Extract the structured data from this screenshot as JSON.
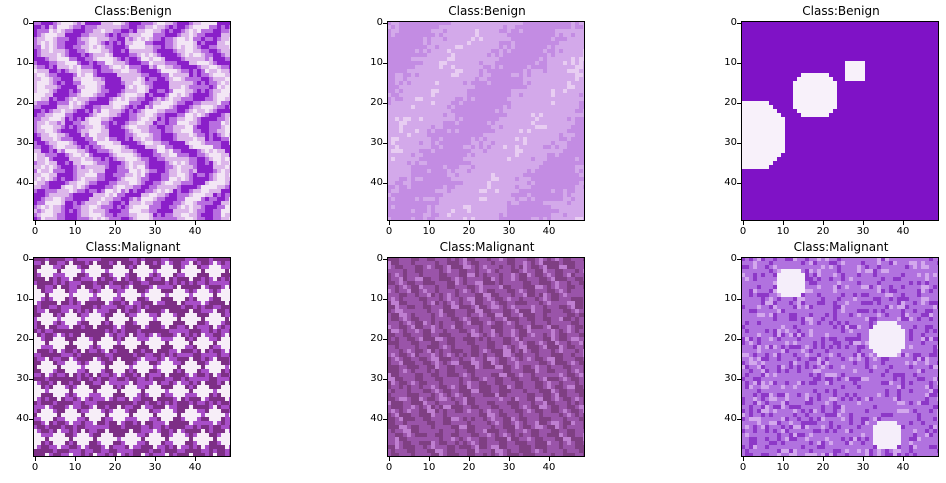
{
  "panels": [
    {
      "title": "Class:Benign",
      "palette": [
        "#f3e6f5",
        "#dcb6ea",
        "#b86ee0",
        "#8a1fc9"
      ],
      "texture": "streaks"
    },
    {
      "title": "Class:Benign",
      "palette": [
        "#e8cdf2",
        "#d3a9ea",
        "#c38ce3",
        "#a45bd7"
      ],
      "texture": "smooth"
    },
    {
      "title": "Class:Benign",
      "palette": [
        "#f8f1fa",
        "#c47ee4",
        "#9a35d3",
        "#7f12c6"
      ],
      "texture": "blobs"
    },
    {
      "title": "Class:Malignant",
      "palette": [
        "#f7eef8",
        "#d9a7e8",
        "#a84ec8",
        "#7d2f86"
      ],
      "texture": "cells"
    },
    {
      "title": "Class:Malignant",
      "palette": [
        "#e0b8e7",
        "#bf7fd1",
        "#9a54a9",
        "#7f3f83"
      ],
      "texture": "fibers"
    },
    {
      "title": "Class:Malignant",
      "palette": [
        "#f5eefa",
        "#d3a8ed",
        "#b172df",
        "#8d38c7"
      ],
      "texture": "mixed"
    }
  ],
  "axes": {
    "y_ticks": [
      "0",
      "10",
      "20",
      "30",
      "40"
    ],
    "x_ticks": [
      "0",
      "10",
      "20",
      "30",
      "40"
    ]
  }
}
